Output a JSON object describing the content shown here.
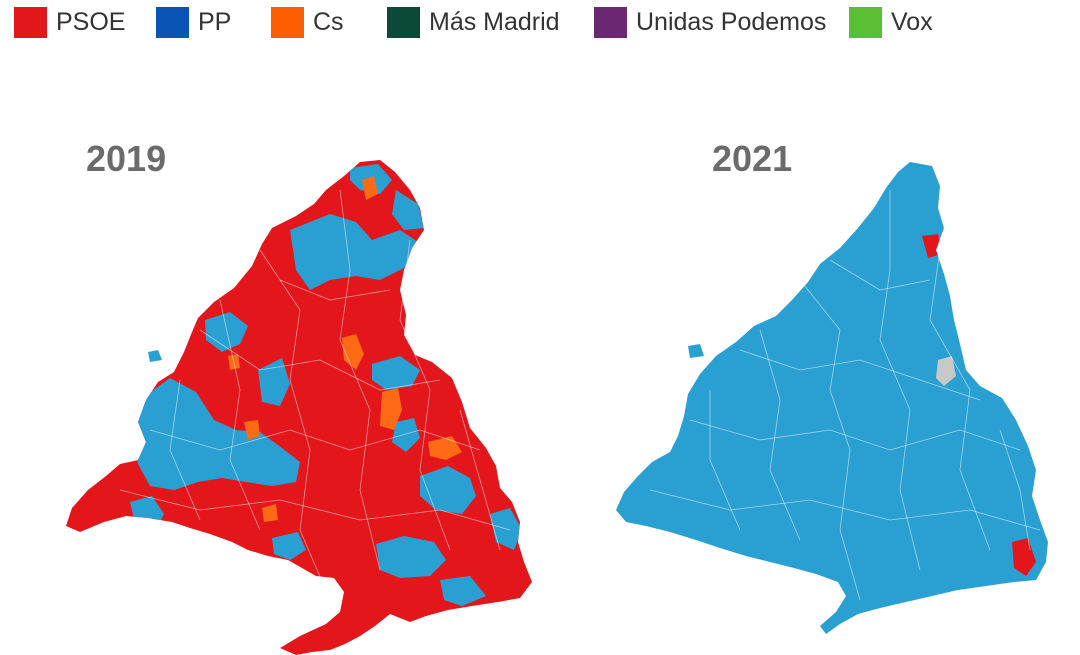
{
  "legend": {
    "items": [
      {
        "label": "PSOE",
        "color": "#e3161b"
      },
      {
        "label": "PP",
        "color": "#0a55b4"
      },
      {
        "label": "Cs",
        "color": "#ff5e00"
      },
      {
        "label": "Más Madrid",
        "color": "#0b4a38"
      },
      {
        "label": "Unidas Podemos",
        "color": "#6a2873"
      },
      {
        "label": "Vox",
        "color": "#5abf35"
      }
    ]
  },
  "maps": [
    {
      "year": "2019",
      "winners_by_area": "predominantly PSOE with PP areas in the north, west and south-east, and scattered Cs municipalities",
      "colors": {
        "PSOE": "#e3161b",
        "PP_on_map": "#2aa0d2",
        "Cs": "#ff6a14"
      }
    },
    {
      "year": "2021",
      "winners_by_area": "almost entirely PP with two PSOE municipalities on the eastern border and one grey municipality",
      "colors": {
        "PP_on_map": "#2aa0d2",
        "PSOE": "#e3161b",
        "no_data": "#c8c8c8"
      }
    }
  ]
}
